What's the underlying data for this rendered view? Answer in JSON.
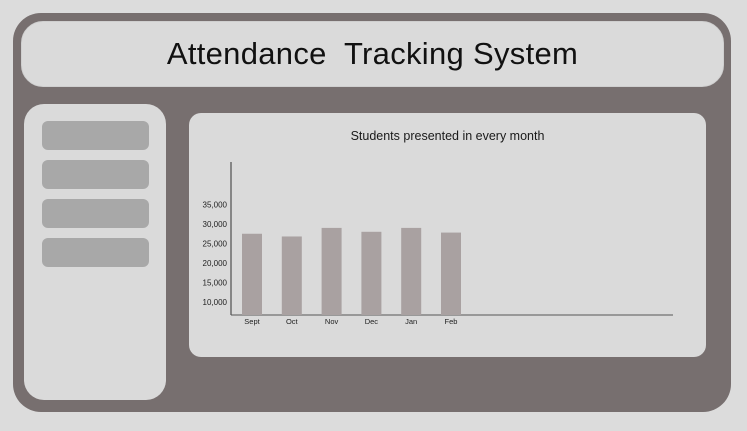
{
  "app": {
    "title": "Attendance  Tracking System"
  },
  "sidebar": {
    "items": [
      {
        "label": ""
      },
      {
        "label": ""
      },
      {
        "label": ""
      },
      {
        "label": ""
      }
    ]
  },
  "colors": {
    "frame": "#776f6f",
    "panel": "#dadada",
    "bar": "#a9a1a1",
    "nav_item": "#a8a8a8"
  },
  "chart_data": {
    "type": "bar",
    "title": "Students presented in every month",
    "categories": [
      "Sept",
      "Oct",
      "Nov",
      "Dec",
      "Jan",
      "Feb"
    ],
    "values": [
      27500,
      26800,
      29000,
      28000,
      29000,
      27800
    ],
    "yticks": [
      "35,000",
      "30,000",
      "25,000",
      "20,000",
      "15,000",
      "10,000"
    ],
    "ylim": [
      7000,
      42000
    ],
    "xlabel": "",
    "ylabel": "",
    "grid": false
  }
}
